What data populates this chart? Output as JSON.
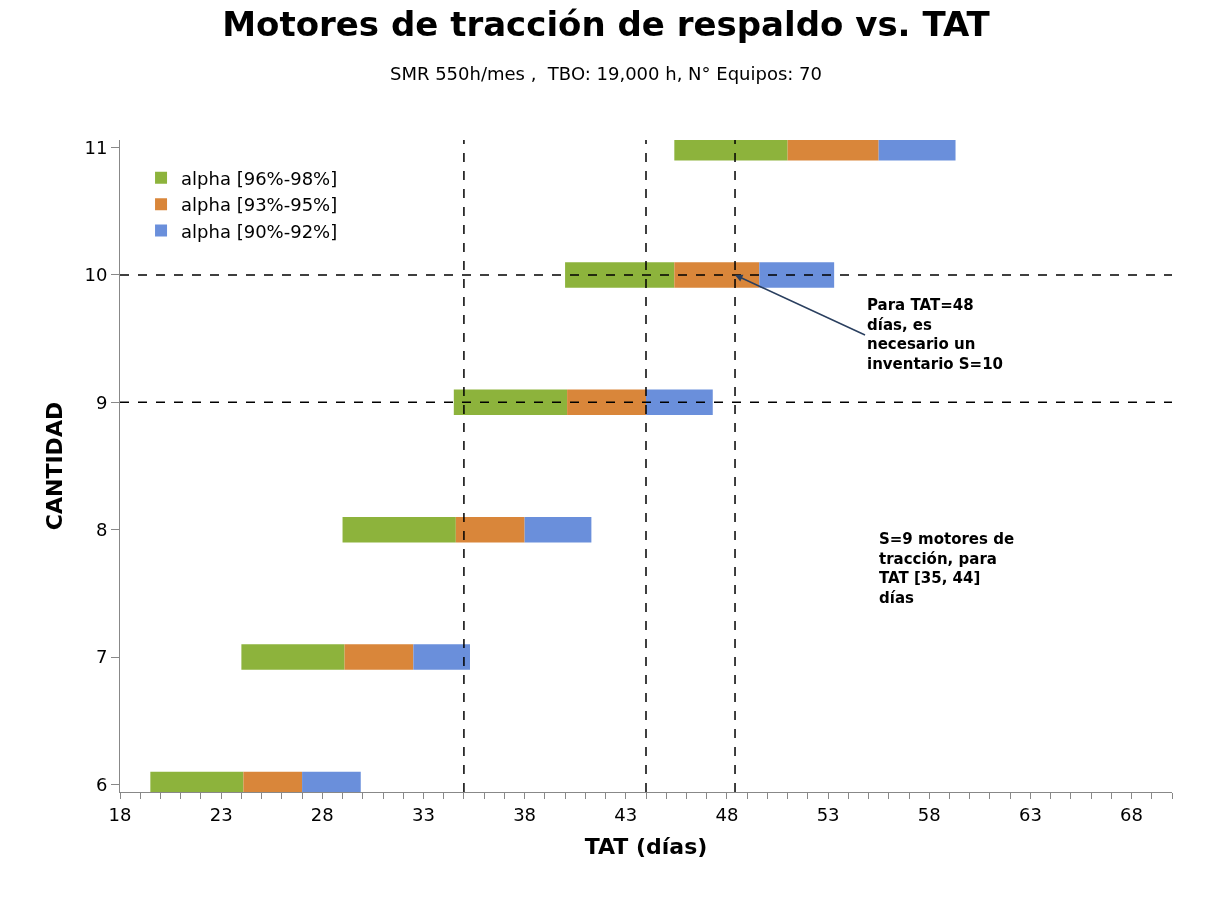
{
  "chart_data": {
    "type": "bar",
    "orientation": "horizontal",
    "title": "Motores de tracción de respaldo vs. TAT",
    "subtitle": "SMR 550h/mes ,  TBO: 19,000 h, N° Equipos: 70",
    "xlabel": "TAT (días)",
    "ylabel": "CANTIDAD",
    "categories": [
      "11",
      "10",
      "9",
      "8",
      "7",
      "6"
    ],
    "series": [
      {
        "name": "alpha [96%-98%]",
        "color": "#8db33c",
        "base": [
          45.4,
          40.0,
          34.5,
          29.0,
          24.0,
          19.5
        ],
        "values": [
          5.6,
          5.4,
          5.6,
          5.6,
          5.1,
          4.6
        ]
      },
      {
        "name": "alpha [93%-95%]",
        "color": "#d9863a",
        "base": [
          51.0,
          45.4,
          40.1,
          34.6,
          29.1,
          24.1
        ],
        "values": [
          4.5,
          4.2,
          3.9,
          3.4,
          3.4,
          2.9
        ]
      },
      {
        "name": "alpha [90%-92%]",
        "color": "#6a8fdb",
        "base": [
          55.5,
          49.6,
          44.0,
          38.0,
          32.5,
          27.0
        ],
        "values": [
          3.8,
          3.7,
          3.3,
          3.3,
          2.8,
          2.9
        ]
      }
    ],
    "xlim": [
      18,
      70
    ],
    "xticks": [
      18,
      {
        "value": 19,
        "label": null
      },
      {
        "value": 20,
        "label": null
      },
      {
        "value": 21,
        "label": null
      },
      {
        "value": 22,
        "label": null
      },
      23,
      {
        "value": 24,
        "label": null
      },
      {
        "value": 25,
        "label": null
      },
      {
        "value": 26,
        "label": null
      },
      {
        "value": 27,
        "label": null
      },
      28,
      {
        "value": 29,
        "label": null
      },
      {
        "value": 30,
        "label": null
      },
      {
        "value": 31,
        "label": null
      },
      {
        "value": 32,
        "label": null
      },
      33,
      {
        "value": 34,
        "label": null
      },
      {
        "value": 35,
        "label": null
      },
      {
        "value": 36,
        "label": null
      },
      {
        "value": 37,
        "label": null
      },
      38,
      {
        "value": 39,
        "label": null
      },
      {
        "value": 40,
        "label": null
      },
      {
        "value": 41,
        "label": null
      },
      {
        "value": 42,
        "label": null
      },
      43,
      {
        "value": 44,
        "label": null
      },
      {
        "value": 45,
        "label": null
      },
      {
        "value": 46,
        "label": null
      },
      {
        "value": 47,
        "label": null
      },
      48,
      {
        "value": 49,
        "label": null
      },
      {
        "value": 50,
        "label": null
      },
      {
        "value": 51,
        "label": null
      },
      {
        "value": 52,
        "label": null
      },
      53,
      {
        "value": 54,
        "label": null
      },
      {
        "value": 55,
        "label": null
      },
      {
        "value": 56,
        "label": null
      },
      {
        "value": 57,
        "label": null
      },
      58,
      {
        "value": 59,
        "label": null
      },
      {
        "value": 60,
        "label": null
      },
      {
        "value": 61,
        "label": null
      },
      {
        "value": 62,
        "label": null
      },
      63,
      {
        "value": 64,
        "label": null
      },
      {
        "value": 65,
        "label": null
      },
      {
        "value": 66,
        "label": null
      },
      {
        "value": 67,
        "label": null
      },
      68,
      {
        "value": 69,
        "label": null
      },
      {
        "value": 70,
        "label": null
      }
    ],
    "ref_lines": [
      {
        "axis": "y",
        "value": "10",
        "color": "#000000",
        "line_style": "dashed"
      },
      {
        "axis": "y",
        "value": "9",
        "color": "#000000",
        "line_style": "dashed"
      },
      {
        "axis": "x",
        "value": 35,
        "color": "#000000",
        "line_style": "dashed"
      },
      {
        "axis": "x",
        "value": 44,
        "color": "#000000",
        "line_style": "dashed"
      },
      {
        "axis": "x",
        "value": 48.4,
        "color": "#000000",
        "line_style": "dashed"
      }
    ],
    "annotations": [
      {
        "text": "Para TAT=48\ndías, es\nnecesario un\ninventario S=10",
        "x": 48.4,
        "y": "10"
      },
      "S=9 motores de\ntracción, para\nTAT [35, 44]\ndías"
    ],
    "legend": "top left"
  }
}
